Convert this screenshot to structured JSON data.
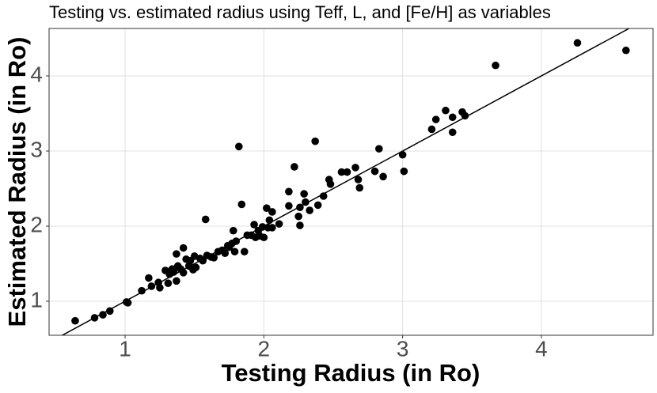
{
  "chart_data": {
    "type": "scatter",
    "title": "Testing vs. estimated radius using Teff, L, and [Fe/H] as variables",
    "x_label": "Testing Radius (in Ro)",
    "y_label": "Estimated Radius (in Ro)",
    "color": "#000000",
    "grid": true,
    "reference_line": "identity",
    "xlim": [
      0.452,
      4.805
    ],
    "ylim": [
      0.547,
      4.632
    ],
    "xticks": [
      1,
      2,
      3,
      4
    ],
    "yticks": [
      1,
      2,
      3,
      4
    ],
    "x": [
      0.64,
      0.78,
      0.84,
      0.89,
      1.01,
      1.02,
      1.12,
      1.17,
      1.19,
      1.24,
      1.25,
      1.29,
      1.31,
      1.32,
      1.34,
      1.35,
      1.37,
      1.37,
      1.38,
      1.4,
      1.42,
      1.42,
      1.44,
      1.46,
      1.47,
      1.49,
      1.5,
      1.51,
      1.54,
      1.56,
      1.58,
      1.59,
      1.62,
      1.64,
      1.67,
      1.7,
      1.72,
      1.74,
      1.75,
      1.77,
      1.78,
      1.79,
      1.8,
      1.82,
      1.84,
      1.86,
      1.88,
      1.91,
      1.93,
      1.94,
      1.96,
      1.97,
      1.99,
      2.0,
      2.02,
      2.03,
      2.04,
      2.06,
      2.06,
      2.11,
      2.18,
      2.18,
      2.22,
      2.25,
      2.26,
      2.26,
      2.29,
      2.3,
      2.33,
      2.37,
      2.39,
      2.43,
      2.47,
      2.48,
      2.56,
      2.6,
      2.66,
      2.68,
      2.69,
      2.8,
      2.83,
      2.86,
      3.0,
      3.01,
      3.21,
      3.24,
      3.31,
      3.36,
      3.36,
      3.43,
      3.45,
      3.67,
      4.26,
      4.61
    ],
    "values": [
      0.74,
      0.78,
      0.82,
      0.87,
      0.99,
      0.98,
      1.14,
      1.31,
      1.2,
      1.25,
      1.18,
      1.41,
      1.24,
      1.36,
      1.43,
      1.39,
      1.63,
      1.27,
      1.47,
      1.43,
      1.71,
      1.38,
      1.56,
      1.47,
      1.54,
      1.42,
      1.6,
      1.45,
      1.57,
      1.54,
      2.09,
      1.61,
      1.59,
      1.58,
      1.66,
      1.68,
      1.64,
      1.74,
      1.72,
      1.77,
      1.94,
      1.66,
      1.8,
      3.06,
      2.29,
      1.66,
      1.88,
      1.88,
      2.02,
      1.85,
      1.94,
      1.87,
      1.99,
      1.85,
      2.24,
      1.98,
      2.08,
      2.19,
      1.98,
      2.03,
      2.46,
      2.27,
      2.79,
      2.13,
      2.01,
      2.25,
      2.43,
      2.32,
      2.21,
      3.13,
      2.28,
      2.4,
      2.62,
      2.56,
      2.72,
      2.72,
      2.78,
      2.62,
      2.51,
      2.73,
      3.03,
      2.66,
      2.95,
      2.73,
      3.29,
      3.42,
      3.54,
      3.25,
      3.45,
      3.52,
      3.47,
      4.14,
      4.44,
      4.34
    ]
  }
}
